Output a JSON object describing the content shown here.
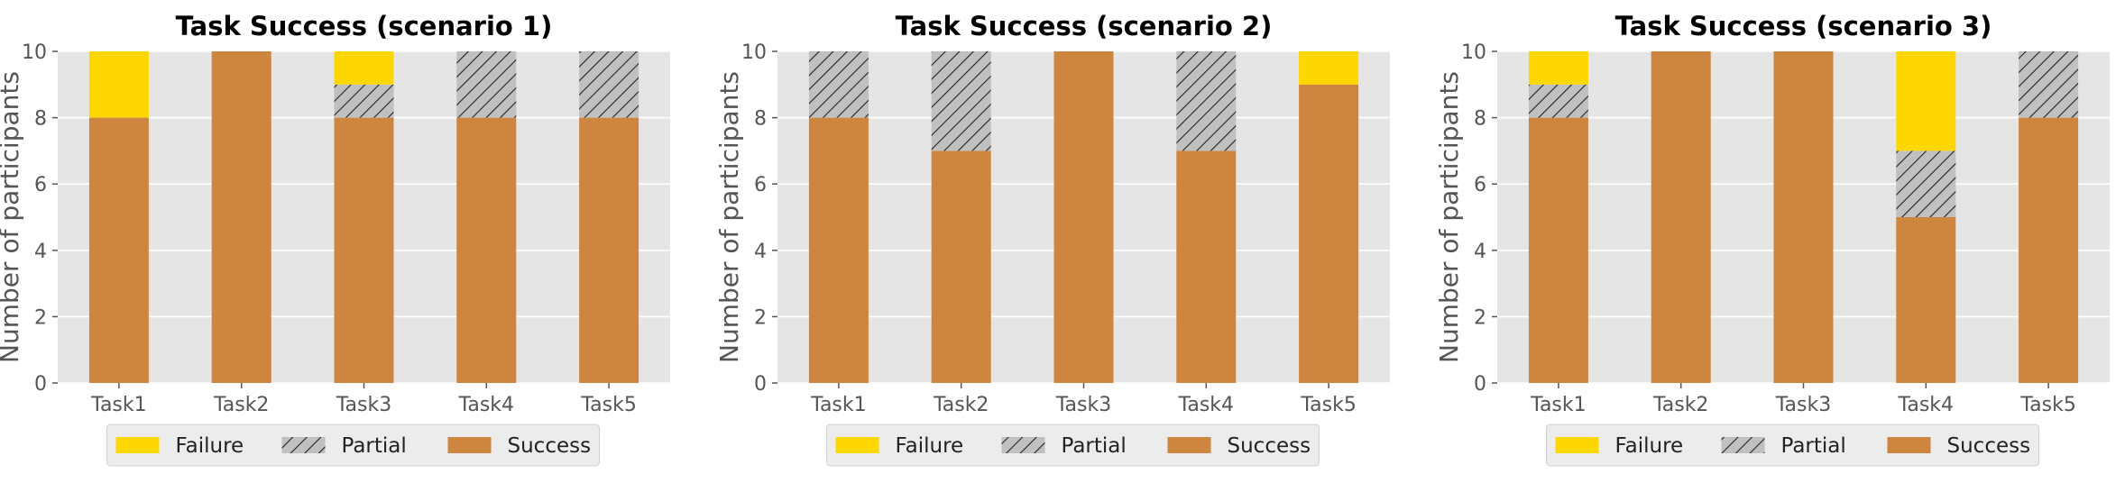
{
  "colors": {
    "success": "#CD853F",
    "partial": "#C0C0C0",
    "failure": "#FFD700",
    "plot_bg": "#E5E5E5",
    "grid": "#FFFFFF"
  },
  "legend_position": "bottom-center",
  "chart_data": [
    {
      "type": "bar",
      "stacked": true,
      "title": "Task Success (scenario 1)",
      "xlabel": "",
      "ylabel": "Number of participants",
      "categories": [
        "Task1",
        "Task2",
        "Task3",
        "Task4",
        "Task5"
      ],
      "ylim": [
        0,
        10
      ],
      "yticks": [
        "0",
        "2",
        "4",
        "6",
        "8",
        "10"
      ],
      "grid": true,
      "series": [
        {
          "name": "Success",
          "values": [
            8,
            10,
            8,
            8,
            8
          ]
        },
        {
          "name": "Partial",
          "values": [
            0,
            0,
            1,
            2,
            2
          ]
        },
        {
          "name": "Failure",
          "values": [
            2,
            0,
            1,
            0,
            0
          ]
        }
      ],
      "legend": [
        "Failure",
        "Partial",
        "Success"
      ]
    },
    {
      "type": "bar",
      "stacked": true,
      "title": "Task Success (scenario 2)",
      "xlabel": "",
      "ylabel": "Number of participants",
      "categories": [
        "Task1",
        "Task2",
        "Task3",
        "Task4",
        "Task5"
      ],
      "ylim": [
        0,
        10
      ],
      "yticks": [
        "0",
        "2",
        "4",
        "6",
        "8",
        "10"
      ],
      "grid": true,
      "series": [
        {
          "name": "Success",
          "values": [
            8,
            7,
            10,
            7,
            9
          ]
        },
        {
          "name": "Partial",
          "values": [
            2,
            3,
            0,
            3,
            0
          ]
        },
        {
          "name": "Failure",
          "values": [
            0,
            0,
            0,
            0,
            1
          ]
        }
      ],
      "legend": [
        "Failure",
        "Partial",
        "Success"
      ]
    },
    {
      "type": "bar",
      "stacked": true,
      "title": "Task Success (scenario 3)",
      "xlabel": "",
      "ylabel": "Number of participants",
      "categories": [
        "Task1",
        "Task2",
        "Task3",
        "Task4",
        "Task5"
      ],
      "ylim": [
        0,
        10
      ],
      "yticks": [
        "0",
        "2",
        "4",
        "6",
        "8",
        "10"
      ],
      "grid": true,
      "series": [
        {
          "name": "Success",
          "values": [
            8,
            10,
            10,
            5,
            8
          ]
        },
        {
          "name": "Partial",
          "values": [
            1,
            0,
            0,
            2,
            2
          ]
        },
        {
          "name": "Failure",
          "values": [
            1,
            0,
            0,
            3,
            0
          ]
        }
      ],
      "legend": [
        "Failure",
        "Partial",
        "Success"
      ]
    }
  ]
}
